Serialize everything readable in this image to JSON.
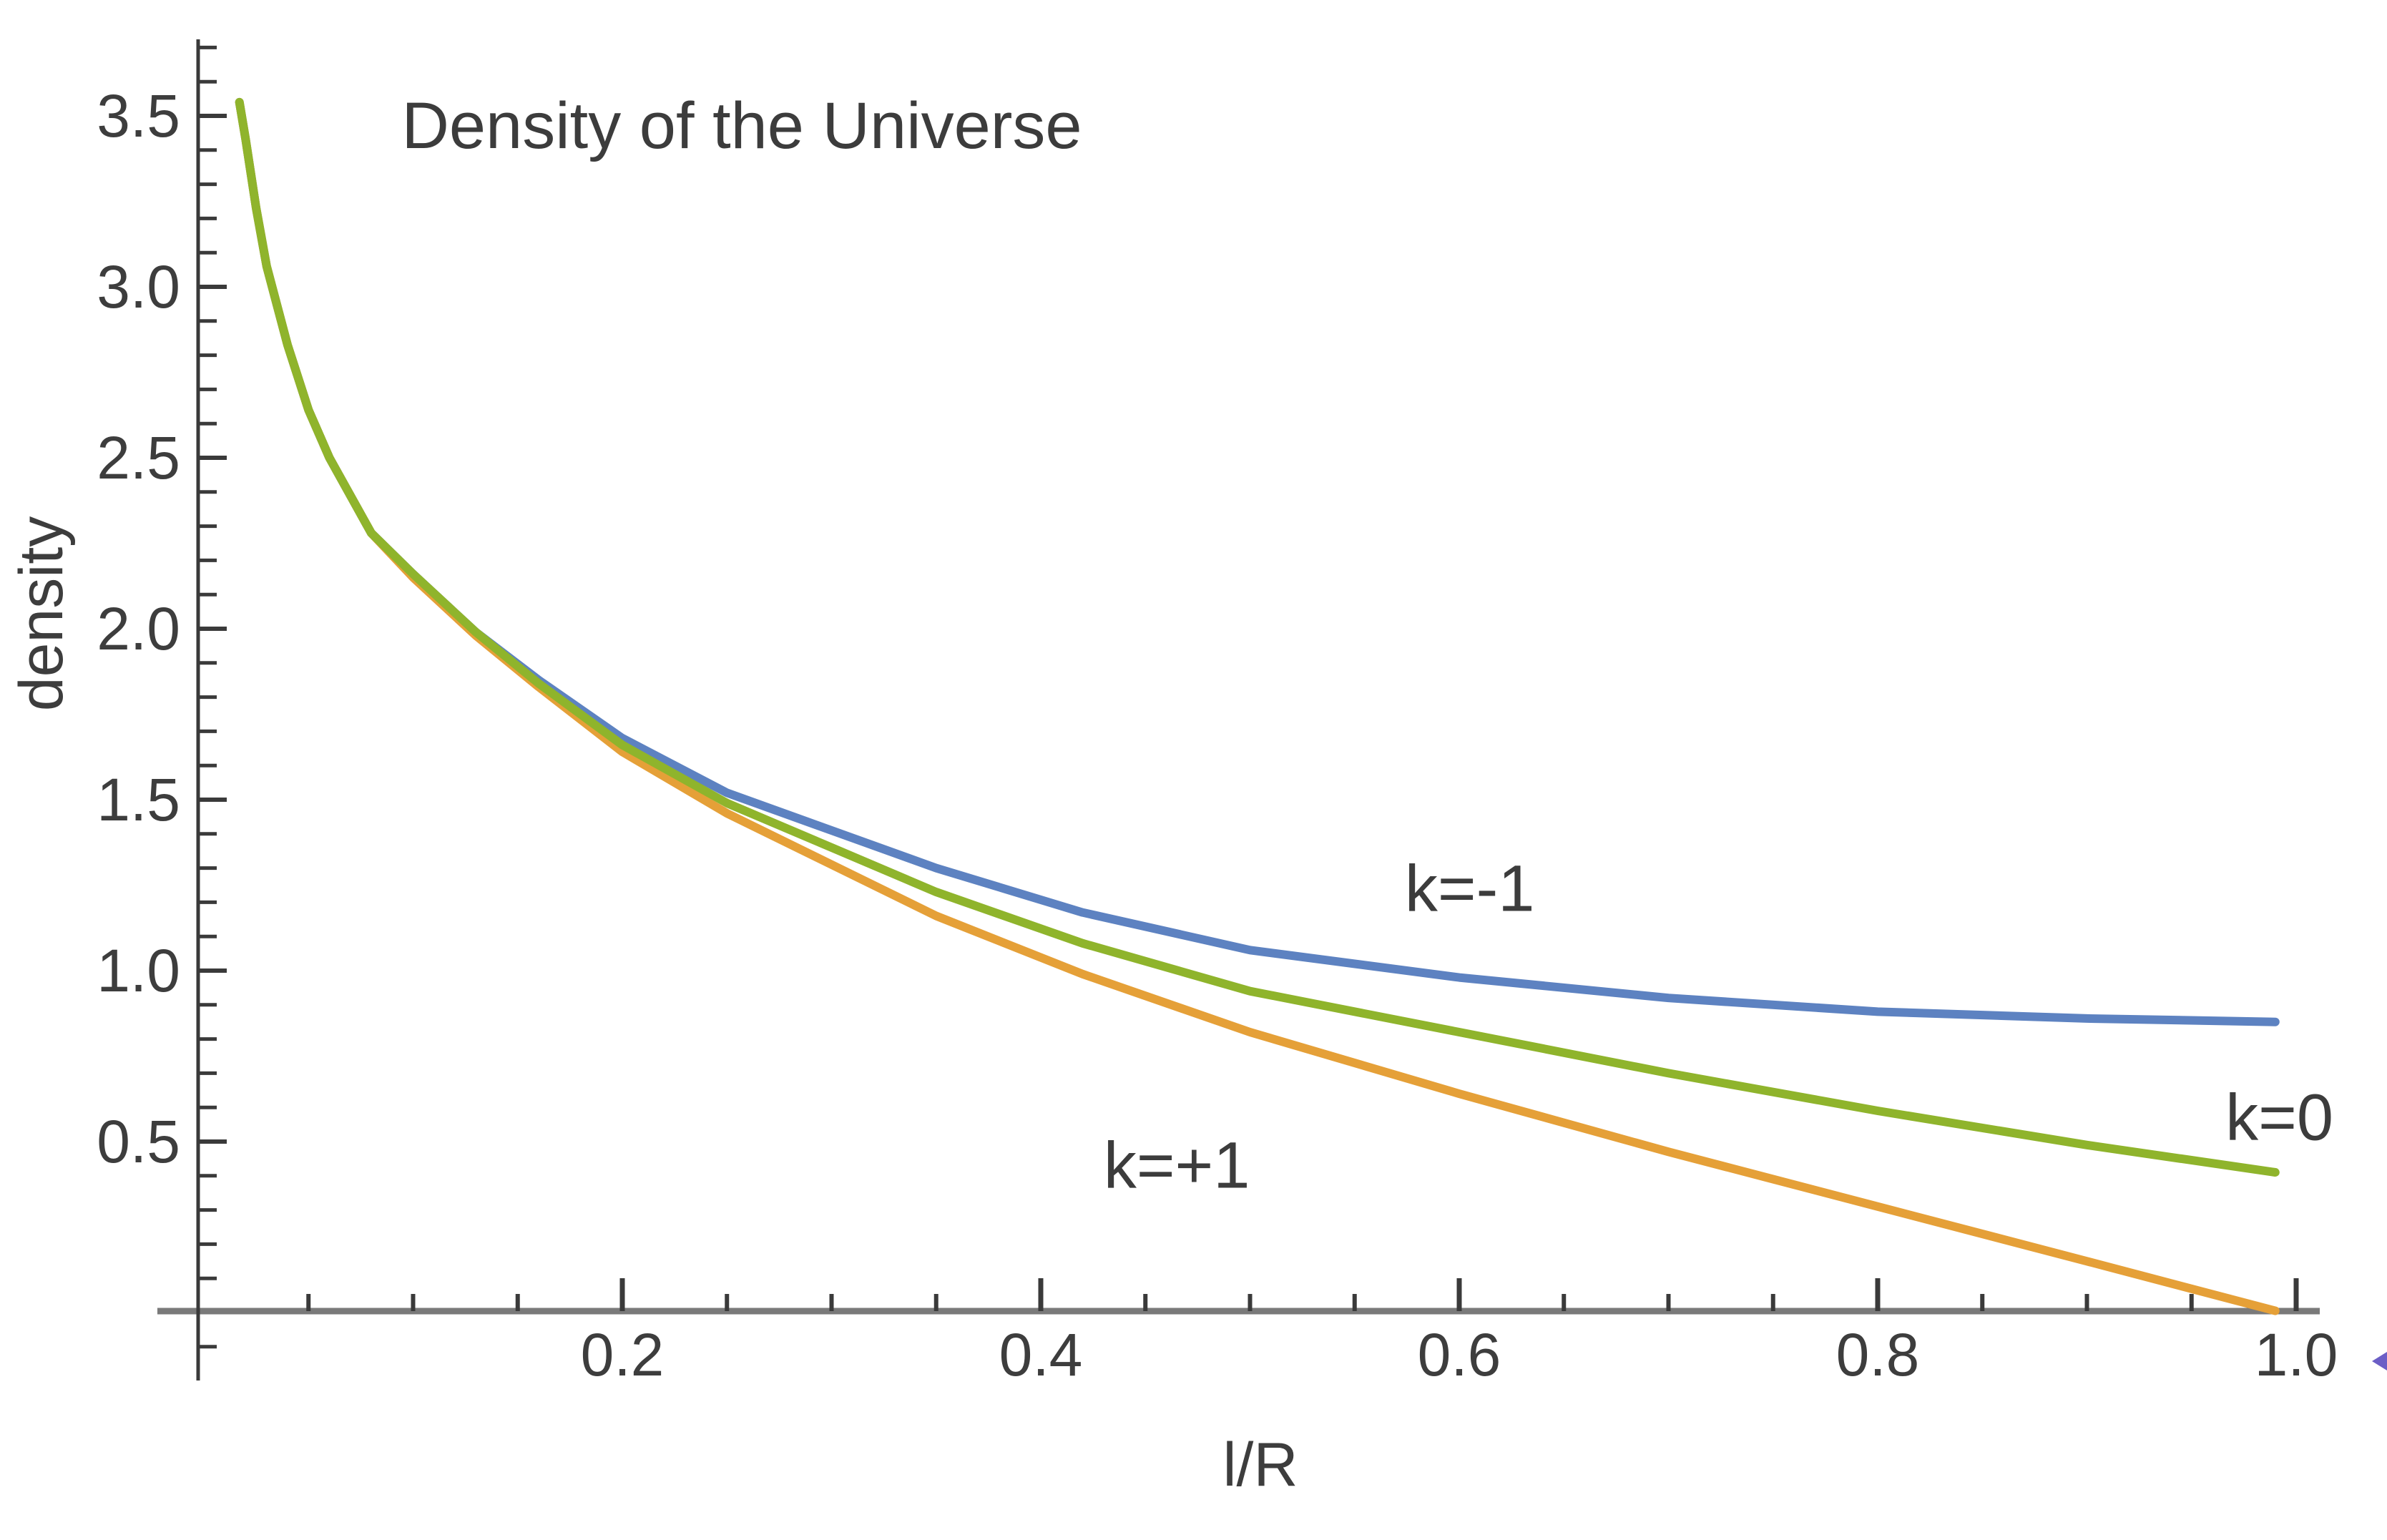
{
  "page": {
    "background_color": "#ffffff"
  },
  "chart_data": {
    "type": "line",
    "title": "Density of the Universe",
    "xlabel": "l/R",
    "ylabel": "density",
    "xlim": [
      0,
      1.01
    ],
    "ylim": [
      0,
      3.72
    ],
    "grid": false,
    "legend_position": "none-inline-annotations",
    "x_axis": {
      "major_ticks": [
        0.2,
        0.4,
        0.6,
        0.8,
        1.0
      ],
      "major_tick_labels": [
        "0.2",
        "0.4",
        "0.6",
        "0.8",
        "1.0"
      ],
      "minor_tick_step": 0.05
    },
    "y_axis": {
      "major_ticks": [
        0.5,
        1.0,
        1.5,
        2.0,
        2.5,
        3.0,
        3.5
      ],
      "major_tick_labels": [
        "0.5",
        "1.0",
        "1.5",
        "2.0",
        "2.5",
        "3.0",
        "3.5"
      ],
      "minor_tick_step": 0.1,
      "minor_tick_min": -0.1,
      "minor_tick_max": 3.7
    },
    "series": [
      {
        "name": "k=-1",
        "slug": "k-minus-1",
        "color": "#5d82c1",
        "points": [
          [
            0.017,
            3.54
          ],
          [
            0.02,
            3.43
          ],
          [
            0.025,
            3.23
          ],
          [
            0.03,
            3.06
          ],
          [
            0.04,
            2.83
          ],
          [
            0.05,
            2.64
          ],
          [
            0.06,
            2.5
          ],
          [
            0.08,
            2.28
          ],
          [
            0.1,
            2.16
          ],
          [
            0.13,
            1.99
          ],
          [
            0.16,
            1.85
          ],
          [
            0.2,
            1.68
          ],
          [
            0.25,
            1.52
          ],
          [
            0.3,
            1.41
          ],
          [
            0.35,
            1.3
          ],
          [
            0.42,
            1.17
          ],
          [
            0.5,
            1.06
          ],
          [
            0.6,
            0.98
          ],
          [
            0.7,
            0.92
          ],
          [
            0.8,
            0.88
          ],
          [
            0.9,
            0.86
          ],
          [
            0.99,
            0.85
          ]
        ]
      },
      {
        "name": "k=+1",
        "slug": "k-plus-1",
        "color": "#e5a038",
        "points": [
          [
            0.017,
            3.54
          ],
          [
            0.02,
            3.43
          ],
          [
            0.025,
            3.23
          ],
          [
            0.03,
            3.06
          ],
          [
            0.04,
            2.83
          ],
          [
            0.05,
            2.64
          ],
          [
            0.06,
            2.5
          ],
          [
            0.08,
            2.28
          ],
          [
            0.1,
            2.15
          ],
          [
            0.13,
            1.98
          ],
          [
            0.16,
            1.83
          ],
          [
            0.2,
            1.64
          ],
          [
            0.25,
            1.46
          ],
          [
            0.3,
            1.31
          ],
          [
            0.35,
            1.16
          ],
          [
            0.42,
            0.99
          ],
          [
            0.5,
            0.82
          ],
          [
            0.6,
            0.64
          ],
          [
            0.7,
            0.47
          ],
          [
            0.8,
            0.31
          ],
          [
            0.9,
            0.15
          ],
          [
            0.99,
            0.005
          ]
        ]
      },
      {
        "name": "k=0",
        "slug": "k-0",
        "color": "#8fb42c",
        "points": [
          [
            0.017,
            3.54
          ],
          [
            0.02,
            3.43
          ],
          [
            0.025,
            3.23
          ],
          [
            0.03,
            3.06
          ],
          [
            0.04,
            2.83
          ],
          [
            0.05,
            2.64
          ],
          [
            0.06,
            2.5
          ],
          [
            0.08,
            2.28
          ],
          [
            0.1,
            2.16
          ],
          [
            0.13,
            1.99
          ],
          [
            0.16,
            1.84
          ],
          [
            0.2,
            1.66
          ],
          [
            0.25,
            1.49
          ],
          [
            0.3,
            1.36
          ],
          [
            0.35,
            1.23
          ],
          [
            0.42,
            1.08
          ],
          [
            0.5,
            0.94
          ],
          [
            0.6,
            0.82
          ],
          [
            0.7,
            0.7
          ],
          [
            0.8,
            0.59
          ],
          [
            0.9,
            0.49
          ],
          [
            0.99,
            0.41
          ]
        ]
      }
    ],
    "annotations": [
      {
        "text": "k=-1",
        "x": 0.605,
        "y": 1.24,
        "series": "k=-1"
      },
      {
        "text": "k=+1",
        "x": 0.465,
        "y": 0.43,
        "series": "k=+1"
      },
      {
        "text": "k=0",
        "x": 0.992,
        "y": 0.57,
        "series": "k=0"
      }
    ]
  },
  "colors": {
    "x_axis_line": "#7a7a7a",
    "y_axis_line": "#3a3a3a",
    "tick": "#3a3a3a",
    "text": "#3d3d3d",
    "stray_mark": "#6b5ec6"
  }
}
